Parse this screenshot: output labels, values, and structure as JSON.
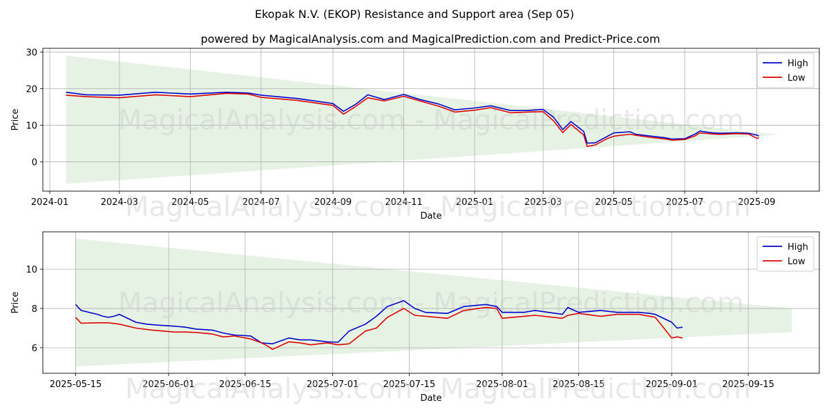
{
  "header": {
    "title": "Ekopak N.V. (EKOP) Resistance and Support area (Sep 05)",
    "subtitle": "powered by MagicalAnalysis.com and MagicalPrediction.com and Predict-Price.com"
  },
  "watermark": "MagicalAnalysis.com - MagicalPrediction.com",
  "colors": {
    "high": "#0000cc",
    "low": "#dd0000",
    "band": "#d5ead2",
    "grid": "#b0b0b0"
  },
  "chart_data": [
    {
      "type": "line",
      "xlabel": "Date",
      "ylabel": "Price",
      "x_range": [
        "2023-12-26",
        "2025-10-25"
      ],
      "ylim": [
        -8,
        31
      ],
      "grid": true,
      "legend_position": "top-right",
      "x_ticks": [
        "2024-01",
        "2024-03",
        "2024-05",
        "2024-07",
        "2024-09",
        "2024-11",
        "2025-01",
        "2025-03",
        "2025-05",
        "2025-07",
        "2025-09"
      ],
      "y_ticks": [
        0,
        10,
        20,
        30
      ],
      "band": {
        "upper": [
          [
            "2024-01-15",
            29.0
          ],
          [
            "2025-09-20",
            7.4
          ]
        ],
        "lower": [
          [
            "2024-01-15",
            -6.0
          ],
          [
            "2025-09-20",
            7.4
          ]
        ]
      },
      "series": [
        {
          "name": "High",
          "points": [
            [
              "2024-01-15",
              19.0
            ],
            [
              "2024-02-01",
              18.3
            ],
            [
              "2024-03-01",
              18.2
            ],
            [
              "2024-04-01",
              19.0
            ],
            [
              "2024-05-01",
              18.5
            ],
            [
              "2024-06-01",
              19.0
            ],
            [
              "2024-06-20",
              18.8
            ],
            [
              "2024-07-01",
              18.2
            ],
            [
              "2024-08-01",
              17.3
            ],
            [
              "2024-09-01",
              15.9
            ],
            [
              "2024-09-10",
              13.8
            ],
            [
              "2024-09-20",
              15.6
            ],
            [
              "2024-10-01",
              18.3
            ],
            [
              "2024-10-15",
              17.0
            ],
            [
              "2024-11-01",
              18.4
            ],
            [
              "2024-11-15",
              17.0
            ],
            [
              "2024-12-01",
              15.8
            ],
            [
              "2024-12-15",
              14.2
            ],
            [
              "2025-01-01",
              14.7
            ],
            [
              "2025-01-15",
              15.3
            ],
            [
              "2025-02-01",
              14.0
            ],
            [
              "2025-02-15",
              14.0
            ],
            [
              "2025-03-01",
              14.3
            ],
            [
              "2025-03-10",
              12.2
            ],
            [
              "2025-03-18",
              8.8
            ],
            [
              "2025-03-25",
              11.0
            ],
            [
              "2025-04-05",
              8.3
            ],
            [
              "2025-04-08",
              5.1
            ],
            [
              "2025-04-15",
              5.2
            ],
            [
              "2025-04-25",
              6.9
            ],
            [
              "2025-05-01",
              7.9
            ],
            [
              "2025-05-15",
              8.2
            ],
            [
              "2025-05-20",
              7.5
            ],
            [
              "2025-06-01",
              7.05
            ],
            [
              "2025-06-15",
              6.55
            ],
            [
              "2025-06-20",
              6.2
            ],
            [
              "2025-07-01",
              6.3
            ],
            [
              "2025-07-10",
              7.6
            ],
            [
              "2025-07-14",
              8.4
            ],
            [
              "2025-07-25",
              7.9
            ],
            [
              "2025-08-01",
              7.8
            ],
            [
              "2025-08-15",
              7.9
            ],
            [
              "2025-08-25",
              7.8
            ],
            [
              "2025-09-01",
              7.3
            ],
            [
              "2025-09-03",
              7.05
            ]
          ]
        },
        {
          "name": "Low",
          "points": [
            [
              "2024-01-15",
              18.2
            ],
            [
              "2024-02-01",
              17.8
            ],
            [
              "2024-03-01",
              17.5
            ],
            [
              "2024-04-01",
              18.3
            ],
            [
              "2024-05-01",
              17.8
            ],
            [
              "2024-06-01",
              18.7
            ],
            [
              "2024-06-20",
              18.5
            ],
            [
              "2024-07-01",
              17.6
            ],
            [
              "2024-08-01",
              16.8
            ],
            [
              "2024-09-01",
              15.4
            ],
            [
              "2024-09-10",
              13.0
            ],
            [
              "2024-09-20",
              15.0
            ],
            [
              "2024-10-01",
              17.5
            ],
            [
              "2024-10-15",
              16.6
            ],
            [
              "2024-11-01",
              17.9
            ],
            [
              "2024-11-15",
              16.6
            ],
            [
              "2024-12-01",
              15.2
            ],
            [
              "2024-12-15",
              13.6
            ],
            [
              "2025-01-01",
              14.1
            ],
            [
              "2025-01-15",
              14.8
            ],
            [
              "2025-02-01",
              13.4
            ],
            [
              "2025-02-15",
              13.6
            ],
            [
              "2025-03-01",
              13.7
            ],
            [
              "2025-03-10",
              11.2
            ],
            [
              "2025-03-18",
              8.0
            ],
            [
              "2025-03-25",
              10.2
            ],
            [
              "2025-04-05",
              7.3
            ],
            [
              "2025-04-08",
              4.2
            ],
            [
              "2025-04-15",
              4.6
            ],
            [
              "2025-04-25",
              6.3
            ],
            [
              "2025-05-01",
              7.0
            ],
            [
              "2025-05-15",
              7.55
            ],
            [
              "2025-05-20",
              7.25
            ],
            [
              "2025-06-01",
              6.7
            ],
            [
              "2025-06-15",
              6.2
            ],
            [
              "2025-06-20",
              5.9
            ],
            [
              "2025-07-01",
              6.1
            ],
            [
              "2025-07-10",
              7.1
            ],
            [
              "2025-07-14",
              7.9
            ],
            [
              "2025-07-25",
              7.6
            ],
            [
              "2025-08-01",
              7.5
            ],
            [
              "2025-08-15",
              7.7
            ],
            [
              "2025-08-25",
              7.6
            ],
            [
              "2025-09-01",
              6.45
            ],
            [
              "2025-09-03",
              6.5
            ]
          ]
        }
      ]
    },
    {
      "type": "line",
      "xlabel": "Date",
      "ylabel": "Price",
      "x_range": [
        "2025-05-09",
        "2025-09-28"
      ],
      "ylim": [
        4.7,
        11.9
      ],
      "grid": true,
      "legend_position": "top-right",
      "x_ticks": [
        "2025-05-15",
        "2025-06-01",
        "2025-06-15",
        "2025-07-01",
        "2025-07-15",
        "2025-08-01",
        "2025-08-15",
        "2025-09-01",
        "2025-09-15"
      ],
      "y_ticks": [
        6,
        8,
        10
      ],
      "band": {
        "upper": [
          [
            "2025-05-15",
            11.55
          ],
          [
            "2025-09-23",
            8.0
          ]
        ],
        "lower": [
          [
            "2025-05-15",
            5.05
          ],
          [
            "2025-09-23",
            6.8
          ]
        ]
      },
      "series": [
        {
          "name": "High",
          "points": [
            [
              "2025-05-15",
              8.2
            ],
            [
              "2025-05-16",
              7.9
            ],
            [
              "2025-05-19",
              7.7
            ],
            [
              "2025-05-20",
              7.6
            ],
            [
              "2025-05-21",
              7.55
            ],
            [
              "2025-05-22",
              7.6
            ],
            [
              "2025-05-23",
              7.7
            ],
            [
              "2025-05-26",
              7.3
            ],
            [
              "2025-05-27",
              7.25
            ],
            [
              "2025-05-28",
              7.2
            ],
            [
              "2025-05-30",
              7.15
            ],
            [
              "2025-06-02",
              7.1
            ],
            [
              "2025-06-04",
              7.05
            ],
            [
              "2025-06-06",
              6.95
            ],
            [
              "2025-06-09",
              6.9
            ],
            [
              "2025-06-11",
              6.75
            ],
            [
              "2025-06-13",
              6.65
            ],
            [
              "2025-06-16",
              6.6
            ],
            [
              "2025-06-18",
              6.25
            ],
            [
              "2025-06-20",
              6.2
            ],
            [
              "2025-06-23",
              6.5
            ],
            [
              "2025-06-25",
              6.4
            ],
            [
              "2025-06-27",
              6.4
            ],
            [
              "2025-06-30",
              6.3
            ],
            [
              "2025-07-02",
              6.28
            ],
            [
              "2025-07-04",
              6.85
            ],
            [
              "2025-07-07",
              7.2
            ],
            [
              "2025-07-09",
              7.6
            ],
            [
              "2025-07-11",
              8.1
            ],
            [
              "2025-07-14",
              8.4
            ],
            [
              "2025-07-16",
              8.0
            ],
            [
              "2025-07-18",
              7.8
            ],
            [
              "2025-07-22",
              7.75
            ],
            [
              "2025-07-25",
              8.1
            ],
            [
              "2025-07-29",
              8.2
            ],
            [
              "2025-07-31",
              8.1
            ],
            [
              "2025-08-01",
              7.8
            ],
            [
              "2025-08-05",
              7.8
            ],
            [
              "2025-08-07",
              7.9
            ],
            [
              "2025-08-12",
              7.7
            ],
            [
              "2025-08-13",
              8.05
            ],
            [
              "2025-08-15",
              7.8
            ],
            [
              "2025-08-19",
              7.9
            ],
            [
              "2025-08-22",
              7.8
            ],
            [
              "2025-08-26",
              7.8
            ],
            [
              "2025-08-28",
              7.75
            ],
            [
              "2025-08-29",
              7.7
            ],
            [
              "2025-09-01",
              7.3
            ],
            [
              "2025-09-02",
              7.0
            ],
            [
              "2025-09-03",
              7.05
            ]
          ]
        },
        {
          "name": "Low",
          "points": [
            [
              "2025-05-15",
              7.55
            ],
            [
              "2025-05-16",
              7.25
            ],
            [
              "2025-05-19",
              7.27
            ],
            [
              "2025-05-21",
              7.27
            ],
            [
              "2025-05-23",
              7.2
            ],
            [
              "2025-05-26",
              7.0
            ],
            [
              "2025-05-29",
              6.9
            ],
            [
              "2025-06-02",
              6.8
            ],
            [
              "2025-06-04",
              6.8
            ],
            [
              "2025-06-06",
              6.78
            ],
            [
              "2025-06-09",
              6.7
            ],
            [
              "2025-06-11",
              6.55
            ],
            [
              "2025-06-13",
              6.6
            ],
            [
              "2025-06-16",
              6.45
            ],
            [
              "2025-06-18",
              6.25
            ],
            [
              "2025-06-19",
              6.1
            ],
            [
              "2025-06-20",
              5.92
            ],
            [
              "2025-06-23",
              6.3
            ],
            [
              "2025-06-25",
              6.25
            ],
            [
              "2025-06-27",
              6.15
            ],
            [
              "2025-06-30",
              6.25
            ],
            [
              "2025-07-02",
              6.15
            ],
            [
              "2025-07-04",
              6.2
            ],
            [
              "2025-07-07",
              6.85
            ],
            [
              "2025-07-09",
              7.0
            ],
            [
              "2025-07-11",
              7.55
            ],
            [
              "2025-07-14",
              8.0
            ],
            [
              "2025-07-16",
              7.65
            ],
            [
              "2025-07-18",
              7.6
            ],
            [
              "2025-07-22",
              7.5
            ],
            [
              "2025-07-25",
              7.9
            ],
            [
              "2025-07-29",
              8.05
            ],
            [
              "2025-07-31",
              8.0
            ],
            [
              "2025-08-01",
              7.5
            ],
            [
              "2025-08-05",
              7.6
            ],
            [
              "2025-08-07",
              7.65
            ],
            [
              "2025-08-12",
              7.5
            ],
            [
              "2025-08-13",
              7.65
            ],
            [
              "2025-08-15",
              7.75
            ],
            [
              "2025-08-19",
              7.6
            ],
            [
              "2025-08-22",
              7.7
            ],
            [
              "2025-08-26",
              7.7
            ],
            [
              "2025-08-28",
              7.6
            ],
            [
              "2025-08-29",
              7.55
            ],
            [
              "2025-09-01",
              6.5
            ],
            [
              "2025-09-02",
              6.55
            ],
            [
              "2025-09-03",
              6.5
            ]
          ]
        }
      ]
    }
  ]
}
